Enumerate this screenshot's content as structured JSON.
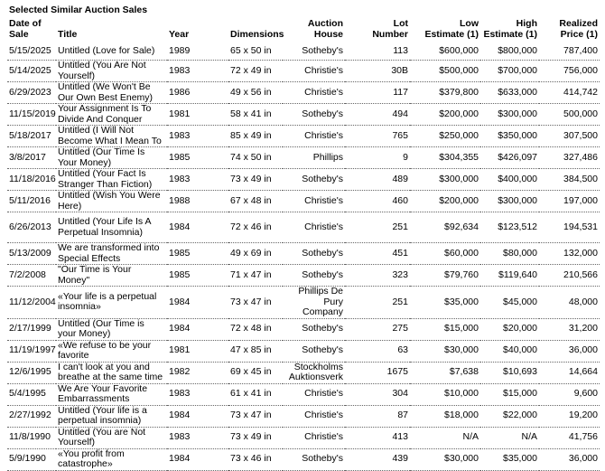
{
  "title": "Selected Similar Auction Sales",
  "columns": [
    "Date of Sale",
    "Title",
    "Year",
    "Dimensions",
    "Auction House",
    "Lot Number",
    "Low Estimate (1)",
    "High Estimate (1)",
    "Realized Price (1)"
  ],
  "columns_split": [
    [
      "Date of Sale",
      ""
    ],
    [
      "Title",
      ""
    ],
    [
      "Year",
      ""
    ],
    [
      "Dimensions",
      ""
    ],
    [
      "Auction",
      "House"
    ],
    [
      "Lot",
      "Number"
    ],
    [
      "Low",
      "Estimate (1)"
    ],
    [
      "High",
      "Estimate (1)"
    ],
    [
      "Realized",
      "Price (1)"
    ]
  ],
  "rows": [
    [
      "5/15/2025",
      "Untitled (Love for Sale)",
      "1989",
      "65 x 50 in",
      "Sotheby's",
      "113",
      "$600,000",
      "$800,000",
      "787,400"
    ],
    [
      "5/14/2025",
      "Untitled (You Are Not Yourself)",
      "1983",
      "72 x 49 in",
      "Christie's",
      "30B",
      "$500,000",
      "$700,000",
      "756,000"
    ],
    [
      "6/29/2023",
      "Untitled (We Won't Be Our Own Best Enemy)",
      "1986",
      "49 x 56 in",
      "Christie's",
      "117",
      "$379,800",
      "$633,000",
      "414,742"
    ],
    [
      "11/15/2019",
      "Your Assignment Is To Divide And Conquer",
      "1981",
      "58 x 41 in",
      "Sotheby's",
      "494",
      "$200,000",
      "$300,000",
      "500,000"
    ],
    [
      "5/18/2017",
      "Untitled (I Will Not Become What I Mean To",
      "1983",
      "85 x 49 in",
      "Christie's",
      "765",
      "$250,000",
      "$350,000",
      "307,500"
    ],
    [
      "3/8/2017",
      "Untitled (Our Time Is Your Money)",
      "1985",
      "74 x 50 in",
      "Phillips",
      "9",
      "$304,355",
      "$426,097",
      "327,486"
    ],
    [
      "11/18/2016",
      "Untitled (Your Fact Is Stranger Than Fiction)",
      "1983",
      "73 x 49 in",
      "Sotheby's",
      "489",
      "$300,000",
      "$400,000",
      "384,500"
    ],
    [
      "5/11/2016",
      "Untitled (Wish You Were Here)",
      "1988",
      "67 x 48 in",
      "Christie's",
      "460",
      "$200,000",
      "$300,000",
      "197,000"
    ],
    [
      "6/26/2013",
      "Untitled (Your Life Is A Perpetual Insomnia)",
      "1984",
      "72 x 46 in",
      "Christie's",
      "251",
      "$92,634",
      "$123,512",
      "194,531"
    ],
    [
      "5/13/2009",
      "We are transformed into Special Effects",
      "1985",
      "49 x 69 in",
      "Sotheby's",
      "451",
      "$60,000",
      "$80,000",
      "132,000"
    ],
    [
      "7/2/2008",
      "\"Our Time is Your Money\"",
      "1985",
      "71 x 47 in",
      "Sotheby's",
      "323",
      "$79,760",
      "$119,640",
      "210,566"
    ],
    [
      "11/12/2004",
      "«Your life is a perpetual insomnia»",
      "1984",
      "73 x 47 in",
      "Phillips De Pury Company",
      "251",
      "$35,000",
      "$45,000",
      "48,000"
    ],
    [
      "2/17/1999",
      "Untitled (Our Time is your Money)",
      "1984",
      "72 x 48 in",
      "Sotheby's",
      "275",
      "$15,000",
      "$20,000",
      "31,200"
    ],
    [
      "11/19/1997",
      "«We refuse to be your favorite",
      "1981",
      "47 x 85 in",
      "Sotheby's",
      "63",
      "$30,000",
      "$40,000",
      "36,000"
    ],
    [
      "12/6/1995",
      "I can't look at you and breathe at the same time",
      "1982",
      "69 x 45 in",
      "Stockholms Auktionsverk",
      "1675",
      "$7,638",
      "$10,693",
      "14,664"
    ],
    [
      "5/4/1995",
      "We Are Your Favorite Embarrassments",
      "1983",
      "61 x 41 in",
      "Christie's",
      "304",
      "$10,000",
      "$15,000",
      "9,600"
    ],
    [
      "2/27/1992",
      "Untitled (Your life is a perpetual insomnia)",
      "1984",
      "73 x 47 in",
      "Christie's",
      "87",
      "$18,000",
      "$22,000",
      "19,200"
    ],
    [
      "11/8/1990",
      "Untitled (You are Not Yourself)",
      "1983",
      "73 x 49 in",
      "Christie's",
      "413",
      "N/A",
      "N/A",
      "41,756"
    ],
    [
      "5/9/1990",
      "«You profit from catastrophe»",
      "1984",
      "73 x 46 in",
      "Sotheby's",
      "439",
      "$30,000",
      "$35,000",
      "36,000"
    ]
  ]
}
